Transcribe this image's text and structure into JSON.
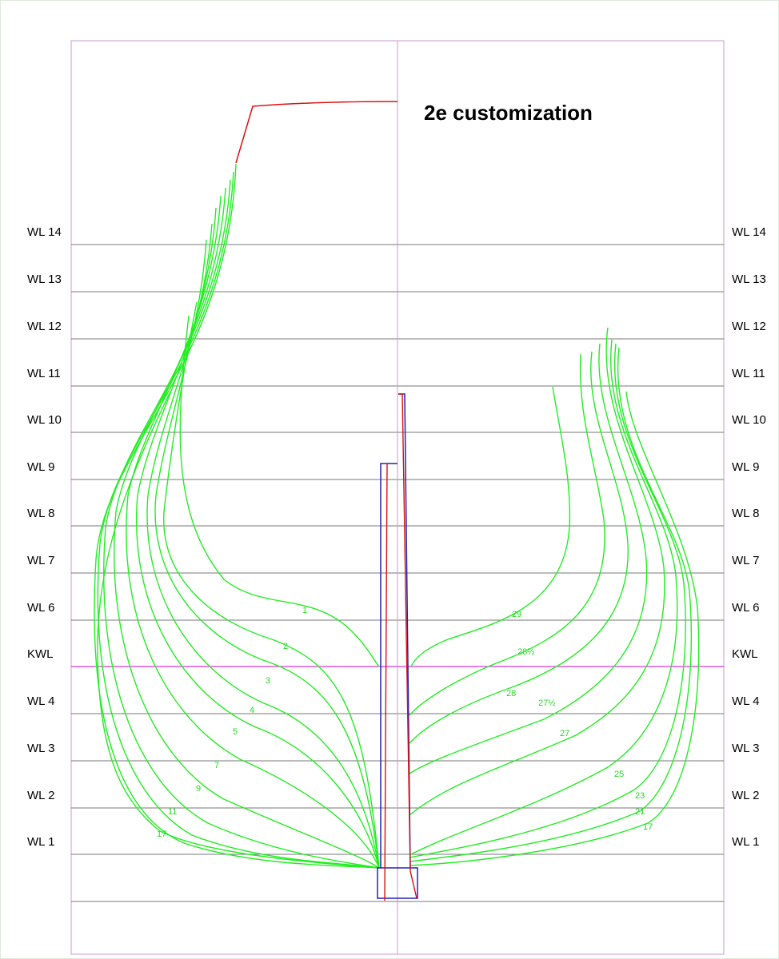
{
  "title": "2e customization",
  "colors": {
    "waterline": "#777777",
    "frame_border": "#cc99cc",
    "centerline": "#cc99cc",
    "kwl_line": "#dd33dd",
    "sections": "#22ee22",
    "keel_outline": "#2222bb",
    "sternpost": "#dd1111"
  },
  "waterlines": [
    {
      "label": "WL 14"
    },
    {
      "label": "WL 13"
    },
    {
      "label": "WL 12"
    },
    {
      "label": "WL 11"
    },
    {
      "label": "WL 10"
    },
    {
      "label": "WL 9"
    },
    {
      "label": "WL 8"
    },
    {
      "label": "WL 7"
    },
    {
      "label": "WL 6"
    },
    {
      "label": "KWL"
    },
    {
      "label": "WL 4"
    },
    {
      "label": "WL 3"
    },
    {
      "label": "WL 2"
    },
    {
      "label": "WL 1"
    }
  ],
  "left_sections": [
    "1",
    "2",
    "3",
    "4",
    "5",
    "7",
    "9",
    "11",
    "17"
  ],
  "right_sections": [
    "29",
    "28½",
    "28",
    "27½",
    "27",
    "25",
    "23",
    "21",
    "17"
  ]
}
